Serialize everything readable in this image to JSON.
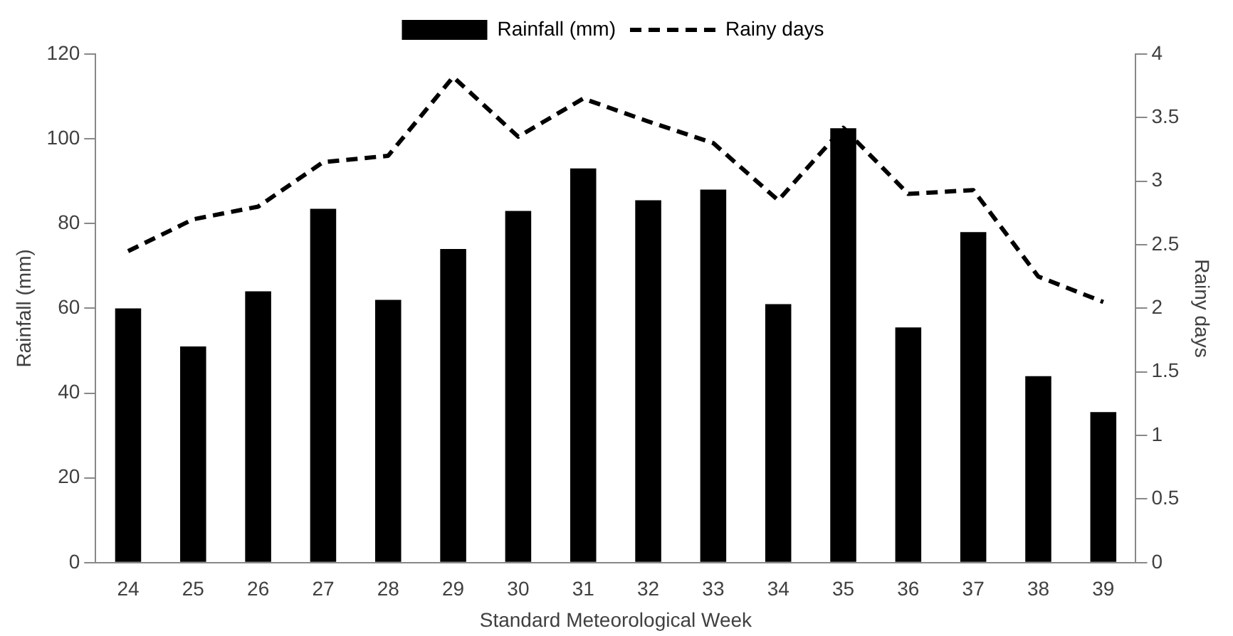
{
  "chart_data": {
    "type": "bar",
    "xlabel": "Standard Meteorological Week",
    "ylabel": "Rainfall (mm)",
    "y2label": "Rainy days",
    "categories": [
      "24",
      "25",
      "26",
      "27",
      "28",
      "29",
      "30",
      "31",
      "32",
      "33",
      "34",
      "35",
      "36",
      "37",
      "38",
      "39"
    ],
    "series": [
      {
        "name": "Rainfall (mm)",
        "color": "#000000",
        "values": [
          60,
          51,
          64,
          83.5,
          62,
          74,
          83,
          93,
          85.5,
          88,
          61,
          102.5,
          55.5,
          78,
          44,
          35.5
        ]
      },
      {
        "name": "Rainy days",
        "type": "line",
        "axis": "y2",
        "color": "#000000",
        "line_style": "dashed",
        "marker": "none",
        "values": [
          2.45,
          2.7,
          2.8,
          3.15,
          3.2,
          3.82,
          3.35,
          3.65,
          3.47,
          3.3,
          2.85,
          3.42,
          2.9,
          2.93,
          2.25,
          2.05
        ]
      }
    ],
    "ylim": [
      0,
      120
    ],
    "yticks": [
      0,
      20,
      40,
      60,
      80,
      100,
      120
    ],
    "y2lim": [
      0,
      4
    ],
    "y2ticks": [
      0,
      0.5,
      1,
      1.5,
      2,
      2.5,
      3,
      3.5,
      4
    ],
    "grid": false,
    "legend": "top"
  }
}
